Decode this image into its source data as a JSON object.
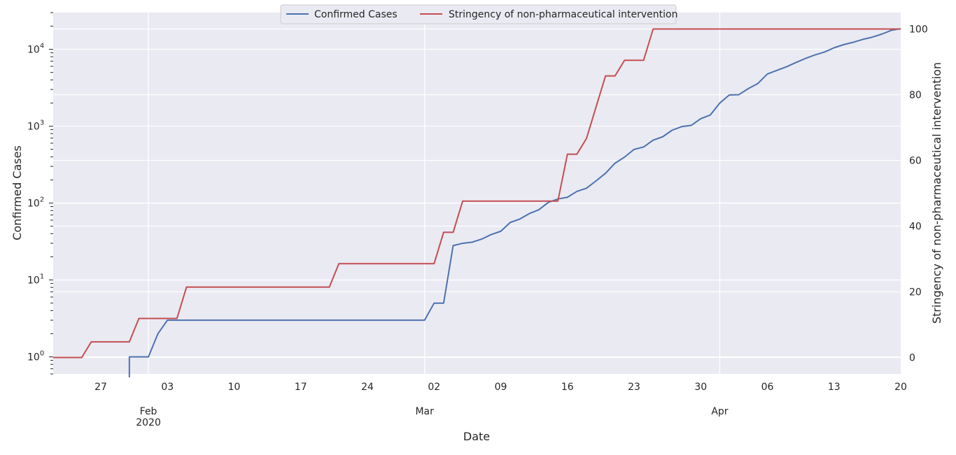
{
  "chart_data": {
    "type": "line",
    "xlabel": "Date",
    "ylabel_left": "Confirmed Cases",
    "ylabel_right": "Stringency of non-pharmaceutical intervention",
    "x_range": [
      "2020-01-22",
      "2020-04-20"
    ],
    "y_left_scale": "log",
    "y_left_range": [
      0.6,
      30000
    ],
    "y_right_range": [
      -5,
      105
    ],
    "grid": true,
    "legend_position": "top-center",
    "x_ticks": [
      {
        "date": "2020-01-27",
        "label": "27"
      },
      {
        "date": "2020-02-03",
        "label": "03"
      },
      {
        "date": "2020-02-10",
        "label": "10"
      },
      {
        "date": "2020-02-17",
        "label": "17"
      },
      {
        "date": "2020-02-24",
        "label": "24"
      },
      {
        "date": "2020-03-02",
        "label": "02"
      },
      {
        "date": "2020-03-09",
        "label": "09"
      },
      {
        "date": "2020-03-16",
        "label": "16"
      },
      {
        "date": "2020-03-23",
        "label": "23"
      },
      {
        "date": "2020-03-30",
        "label": "30"
      },
      {
        "date": "2020-04-06",
        "label": "06"
      },
      {
        "date": "2020-04-13",
        "label": "13"
      },
      {
        "date": "2020-04-20",
        "label": "20"
      }
    ],
    "x_month_labels": [
      {
        "date": "2020-02-01",
        "label": "Feb",
        "sublabel": "2020"
      },
      {
        "date": "2020-03-01",
        "label": "Mar",
        "sublabel": ""
      },
      {
        "date": "2020-04-01",
        "label": "Apr",
        "sublabel": ""
      }
    ],
    "y_left_ticks": [
      {
        "value": 1,
        "base": "10",
        "exp": "0"
      },
      {
        "value": 10,
        "base": "10",
        "exp": "1"
      },
      {
        "value": 100,
        "base": "10",
        "exp": "2"
      },
      {
        "value": 1000,
        "base": "10",
        "exp": "3"
      },
      {
        "value": 10000,
        "base": "10",
        "exp": "4"
      }
    ],
    "y_right_ticks": [
      0,
      20,
      40,
      60,
      80,
      100
    ],
    "colors": {
      "confirmed": "#4c72b0",
      "stringency": "#c44e52",
      "background": "#eaeaf2",
      "grid": "#ffffff"
    },
    "series": [
      {
        "name": "Confirmed Cases",
        "axis": "left",
        "points": [
          [
            "2020-01-30",
            1
          ],
          [
            "2020-01-31",
            1
          ],
          [
            "2020-02-01",
            1
          ],
          [
            "2020-02-02",
            2
          ],
          [
            "2020-02-03",
            3
          ],
          [
            "2020-02-04",
            3
          ],
          [
            "2020-02-10",
            3
          ],
          [
            "2020-02-17",
            3
          ],
          [
            "2020-02-24",
            3
          ],
          [
            "2020-03-01",
            3
          ],
          [
            "2020-03-02",
            5
          ],
          [
            "2020-03-03",
            5
          ],
          [
            "2020-03-04",
            28
          ],
          [
            "2020-03-05",
            30
          ],
          [
            "2020-03-06",
            31
          ],
          [
            "2020-03-07",
            34
          ],
          [
            "2020-03-08",
            39
          ],
          [
            "2020-03-09",
            43
          ],
          [
            "2020-03-10",
            56
          ],
          [
            "2020-03-11",
            62
          ],
          [
            "2020-03-12",
            73
          ],
          [
            "2020-03-13",
            82
          ],
          [
            "2020-03-14",
            102
          ],
          [
            "2020-03-15",
            113
          ],
          [
            "2020-03-16",
            119
          ],
          [
            "2020-03-17",
            142
          ],
          [
            "2020-03-18",
            156
          ],
          [
            "2020-03-19",
            194
          ],
          [
            "2020-03-20",
            244
          ],
          [
            "2020-03-21",
            330
          ],
          [
            "2020-03-22",
            396
          ],
          [
            "2020-03-23",
            499
          ],
          [
            "2020-03-24",
            536
          ],
          [
            "2020-03-25",
            657
          ],
          [
            "2020-03-26",
            727
          ],
          [
            "2020-03-27",
            887
          ],
          [
            "2020-03-28",
            987
          ],
          [
            "2020-03-29",
            1024
          ],
          [
            "2020-03-30",
            1251
          ],
          [
            "2020-03-31",
            1397
          ],
          [
            "2020-04-01",
            1998
          ],
          [
            "2020-04-02",
            2543
          ],
          [
            "2020-04-03",
            2567
          ],
          [
            "2020-04-04",
            3082
          ],
          [
            "2020-04-05",
            3588
          ],
          [
            "2020-04-06",
            4778
          ],
          [
            "2020-04-07",
            5311
          ],
          [
            "2020-04-08",
            5916
          ],
          [
            "2020-04-09",
            6725
          ],
          [
            "2020-04-10",
            7598
          ],
          [
            "2020-04-11",
            8446
          ],
          [
            "2020-04-12",
            9205
          ],
          [
            "2020-04-13",
            10453
          ],
          [
            "2020-04-14",
            11487
          ],
          [
            "2020-04-15",
            12322
          ],
          [
            "2020-04-16",
            13430
          ],
          [
            "2020-04-17",
            14352
          ],
          [
            "2020-04-18",
            15722
          ],
          [
            "2020-04-19",
            17615
          ],
          [
            "2020-04-20",
            18539
          ]
        ]
      },
      {
        "name": "Stringency of non-pharmaceutical intervention",
        "axis": "right",
        "points": [
          [
            "2020-01-22",
            0
          ],
          [
            "2020-01-25",
            0
          ],
          [
            "2020-01-26",
            4.76
          ],
          [
            "2020-01-30",
            4.76
          ],
          [
            "2020-01-31",
            11.9
          ],
          [
            "2020-02-04",
            11.9
          ],
          [
            "2020-02-05",
            21.43
          ],
          [
            "2020-02-20",
            21.43
          ],
          [
            "2020-02-21",
            28.57
          ],
          [
            "2020-03-02",
            28.57
          ],
          [
            "2020-03-03",
            38.1
          ],
          [
            "2020-03-04",
            38.1
          ],
          [
            "2020-03-05",
            47.62
          ],
          [
            "2020-03-15",
            47.62
          ],
          [
            "2020-03-16",
            61.9
          ],
          [
            "2020-03-17",
            61.9
          ],
          [
            "2020-03-18",
            66.67
          ],
          [
            "2020-03-20",
            85.71
          ],
          [
            "2020-03-21",
            85.71
          ],
          [
            "2020-03-22",
            90.48
          ],
          [
            "2020-03-24",
            90.48
          ],
          [
            "2020-03-25",
            100
          ],
          [
            "2020-04-20",
            100
          ]
        ]
      }
    ]
  }
}
